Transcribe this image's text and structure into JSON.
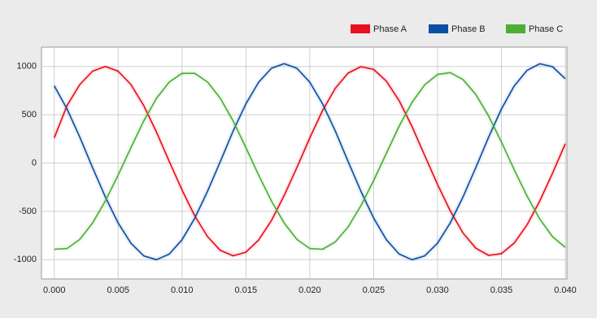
{
  "chart_data": {
    "type": "line",
    "x": [
      0,
      0.001,
      0.002,
      0.003,
      0.004,
      0.005,
      0.006,
      0.007,
      0.008,
      0.009,
      0.01,
      0.011,
      0.012,
      0.013,
      0.014,
      0.015,
      0.016,
      0.017,
      0.018,
      0.019,
      0.02,
      0.021,
      0.022,
      0.023,
      0.024,
      0.025,
      0.026,
      0.027,
      0.028,
      0.029,
      0.03,
      0.031,
      0.032,
      0.033,
      0.034,
      0.035,
      0.036,
      0.037,
      0.038,
      0.039,
      0.04
    ],
    "series": [
      {
        "name": "Phase A",
        "color": "#e8101c",
        "values": [
          260,
          595,
          813,
          952,
          1000,
          952,
          813,
          595,
          321,
          16,
          -279,
          -547,
          -762,
          -904,
          -960,
          -923,
          -797,
          -595,
          -336,
          -45,
          261,
          544,
          775,
          931,
          998,
          969,
          848,
          645,
          380,
          78,
          -221,
          -496,
          -724,
          -882,
          -956,
          -938,
          -829,
          -641,
          -393,
          -106,
          200
        ]
      },
      {
        "name": "Phase B",
        "color": "#0a4fa3",
        "values": [
          800,
          560,
          269,
          -47,
          -350,
          -620,
          -830,
          -961,
          -1000,
          -942,
          -794,
          -570,
          -291,
          16,
          331,
          613,
          837,
          981,
          1030,
          981,
          837,
          613,
          331,
          16,
          -291,
          -570,
          -794,
          -942,
          -1000,
          -961,
          -830,
          -620,
          -350,
          -47,
          269,
          560,
          798,
          959,
          1028,
          998,
          873
        ]
      },
      {
        "name": "Phase C",
        "color": "#4caf34",
        "values": [
          -893,
          -885,
          -791,
          -621,
          -392,
          -125,
          160,
          436,
          670,
          839,
          929,
          929,
          839,
          670,
          436,
          160,
          -125,
          -392,
          -621,
          -791,
          -885,
          -893,
          -816,
          -661,
          -442,
          -181,
          102,
          383,
          627,
          811,
          917,
          936,
          865,
          710,
          487,
          218,
          -69,
          -340,
          -579,
          -762,
          -872
        ]
      }
    ],
    "xlim": [
      -0.001,
      0.04
    ],
    "xticks": [
      {
        "value": 0,
        "label": "0.000"
      },
      {
        "value": 0.005,
        "label": "0.005"
      },
      {
        "value": 0.01,
        "label": "0.010"
      },
      {
        "value": 0.015,
        "label": "0.015"
      },
      {
        "value": 0.02,
        "label": "0.020"
      },
      {
        "value": 0.025,
        "label": "0.025"
      },
      {
        "value": 0.03,
        "label": "0.030"
      },
      {
        "value": 0.035,
        "label": "0.035"
      },
      {
        "value": 0.04,
        "label": "0.040"
      }
    ],
    "ylim": [
      -1200,
      1200
    ],
    "yticks": [
      -1000,
      -500,
      0,
      500,
      1000
    ],
    "grid": true,
    "legend": "top-right"
  }
}
